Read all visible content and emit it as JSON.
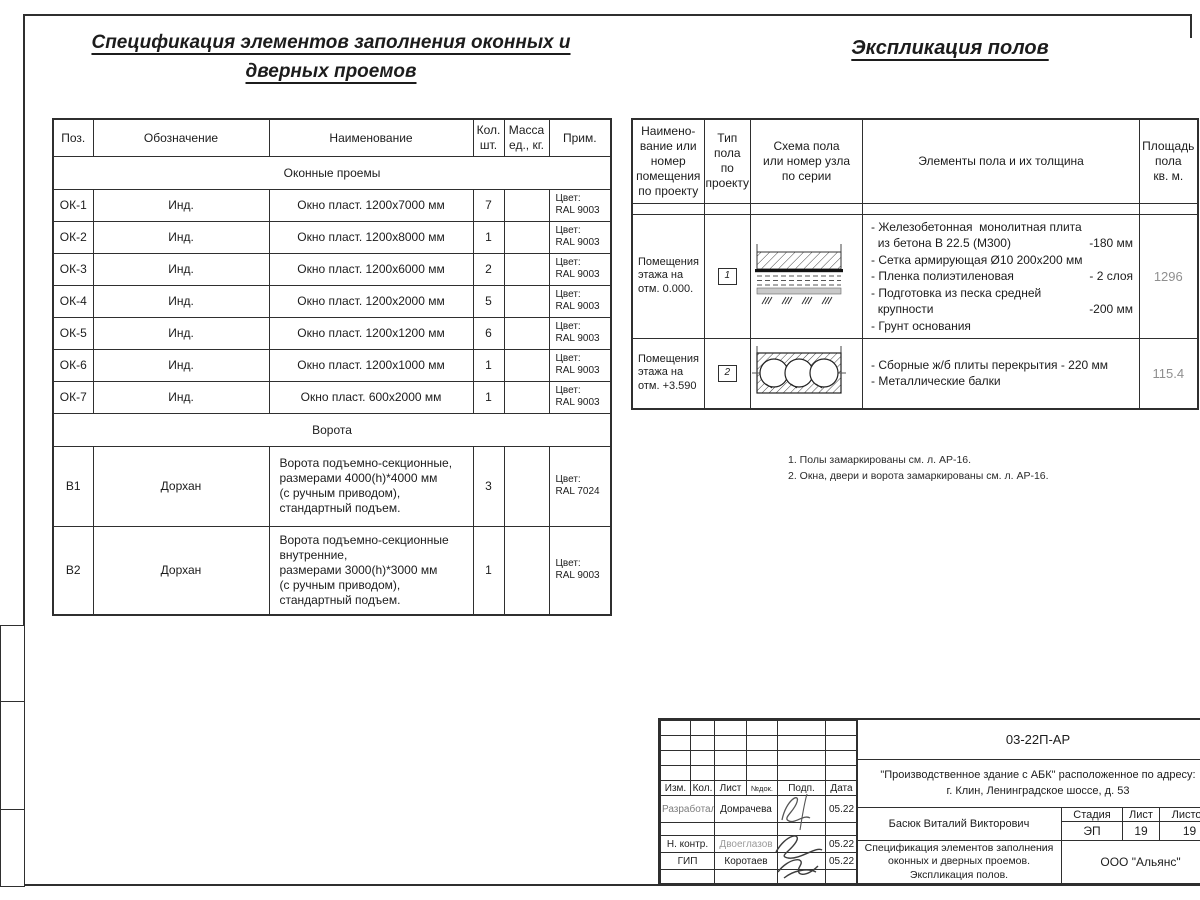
{
  "titles": {
    "spec_line1": "Спецификация элементов заполнения оконных и",
    "spec_line2": "дверных проемов",
    "floors": "Экспликация полов"
  },
  "colors": {
    "line": "#2f2f2f",
    "muted_value": "#8f8f8f"
  },
  "spec_table": {
    "headers": {
      "pos": "Поз.",
      "designation": "Обозначение",
      "name": "Наименование",
      "qty": "Кол.\nшт.",
      "mass": "Масса\nед., кг.",
      "note": "Прим."
    },
    "rows": [
      {
        "type": "section",
        "label": "Оконные проемы"
      },
      {
        "type": "item",
        "pos": "ОК-1",
        "designation": "Инд.",
        "name": "Окно пласт. 1200х7000 мм",
        "qty": "7",
        "mass": "",
        "note": "Цвет:\nRAL 9003"
      },
      {
        "type": "item",
        "pos": "ОК-2",
        "designation": "Инд.",
        "name": "Окно пласт. 1200х8000 мм",
        "qty": "1",
        "mass": "",
        "note": "Цвет:\nRAL 9003"
      },
      {
        "type": "item",
        "pos": "ОК-3",
        "designation": "Инд.",
        "name": "Окно пласт. 1200х6000 мм",
        "qty": "2",
        "mass": "",
        "note": "Цвет:\nRAL 9003"
      },
      {
        "type": "item",
        "pos": "ОК-4",
        "designation": "Инд.",
        "name": "Окно пласт. 1200х2000 мм",
        "qty": "5",
        "mass": "",
        "note": "Цвет:\nRAL 9003"
      },
      {
        "type": "item",
        "pos": "ОК-5",
        "designation": "Инд.",
        "name": "Окно пласт. 1200х1200 мм",
        "qty": "6",
        "mass": "",
        "note": "Цвет:\nRAL 9003"
      },
      {
        "type": "item",
        "pos": "ОК-6",
        "designation": "Инд.",
        "name": "Окно пласт. 1200х1000 мм",
        "qty": "1",
        "mass": "",
        "note": "Цвет:\nRAL 9003"
      },
      {
        "type": "item",
        "pos": "ОК-7",
        "designation": "Инд.",
        "name": "Окно пласт. 600х2000 мм",
        "qty": "1",
        "mass": "",
        "note": "Цвет:\nRAL 9003"
      },
      {
        "type": "section",
        "label": "Ворота"
      },
      {
        "type": "item",
        "size": "b1",
        "pos": "В1",
        "designation": "Дорхан",
        "name": "Ворота подъемно-секционные,\nразмерами 4000(h)*4000 мм\n(с ручным приводом),\nстандартный  подъем.",
        "qty": "3",
        "mass": "",
        "note": "Цвет:\nRAL 7024"
      },
      {
        "type": "item",
        "size": "b2",
        "pos": "В2",
        "designation": "Дорхан",
        "name": "Ворота подъемно-секционные\nвнутренние,\nразмерами 3000(h)*3000 мм\n(с ручным приводом),\nстандартный подъем.",
        "qty": "1",
        "mass": "",
        "note": "Цвет:\nRAL 9003"
      }
    ]
  },
  "floors_table": {
    "headers": {
      "room": "Наимено-\nвание или\nномер\nпомещения\nпо проекту",
      "type": "Тип\nпола\nпо\nпроекту",
      "scheme": "Схема пола\nили номер узла\nпо серии",
      "elements": "Элементы пола и их толщина",
      "area": "Площадь\nпола\nкв. м."
    },
    "rows": [
      {
        "room": "Помещения\nэтажа на\nотм. 0.000.",
        "type_no": "1",
        "scheme": "slab-on-grade-diagram",
        "elements": [
          {
            "t": "- Железобетонная  монолитная плита",
            "v": ""
          },
          {
            "t": "  из бетона В 22.5 (М300)",
            "v": "-180 мм"
          },
          {
            "t": "- Сетка армирующая Ø10 200х200 мм",
            "v": ""
          },
          {
            "t": "- Пленка полиэтиленовая",
            "v": "- 2 слоя"
          },
          {
            "t": "- Подготовка из песка средней",
            "v": ""
          },
          {
            "t": "  крупности",
            "v": "-200 мм"
          },
          {
            "t": "- Грунт основания",
            "v": ""
          }
        ],
        "area": "1296"
      },
      {
        "room": "Помещения\nэтажа на\nотм. +3.590",
        "type_no": "2",
        "scheme": "hollow-core-slab-diagram",
        "elements": [
          {
            "t": "- Сборные ж/б плиты перекрытия - 220 мм",
            "v": ""
          },
          {
            "t": "- Металлические балки",
            "v": ""
          }
        ],
        "area": "115.4"
      }
    ]
  },
  "notes": [
    "1. Полы замаркированы см. л. АР-16.",
    "2. Окна, двери и ворота замаркированы см. л.  АР-16."
  ],
  "title_block": {
    "doc_code": "03-22П-АР",
    "object": "\"Производственное здание с АБК\" расположенное по адресу:\nг. Клин, Ленинградское шоссе, д. 53",
    "sig_headers": {
      "izm": "Изм.",
      "kol": "Кол.",
      "list": "Лист",
      "ndoc": "№док.",
      "podp": "Подп.",
      "data": "Дата"
    },
    "sig_rows": [
      {
        "role": "Разработал",
        "name": "Домрачева",
        "date": "05.22"
      },
      {
        "role": "",
        "name": "",
        "date": ""
      },
      {
        "role": "Н. контр.",
        "name": "Двоеглазов",
        "date": "05.22"
      },
      {
        "role": "ГИП",
        "name": "Коротаев",
        "date": "05.22"
      }
    ],
    "supervisor": "Басюк Виталий Викторович",
    "stage_label": "Стадия",
    "sheet_label": "Лист",
    "sheets_label": "Листов",
    "stage": "ЭП",
    "sheet_no": "19",
    "sheets_total": "19",
    "doc_title": "Спецификация элементов заполнения\nоконных и дверных проемов.\nЭкспликация полов.",
    "company": "ООО \"Альянс\""
  }
}
